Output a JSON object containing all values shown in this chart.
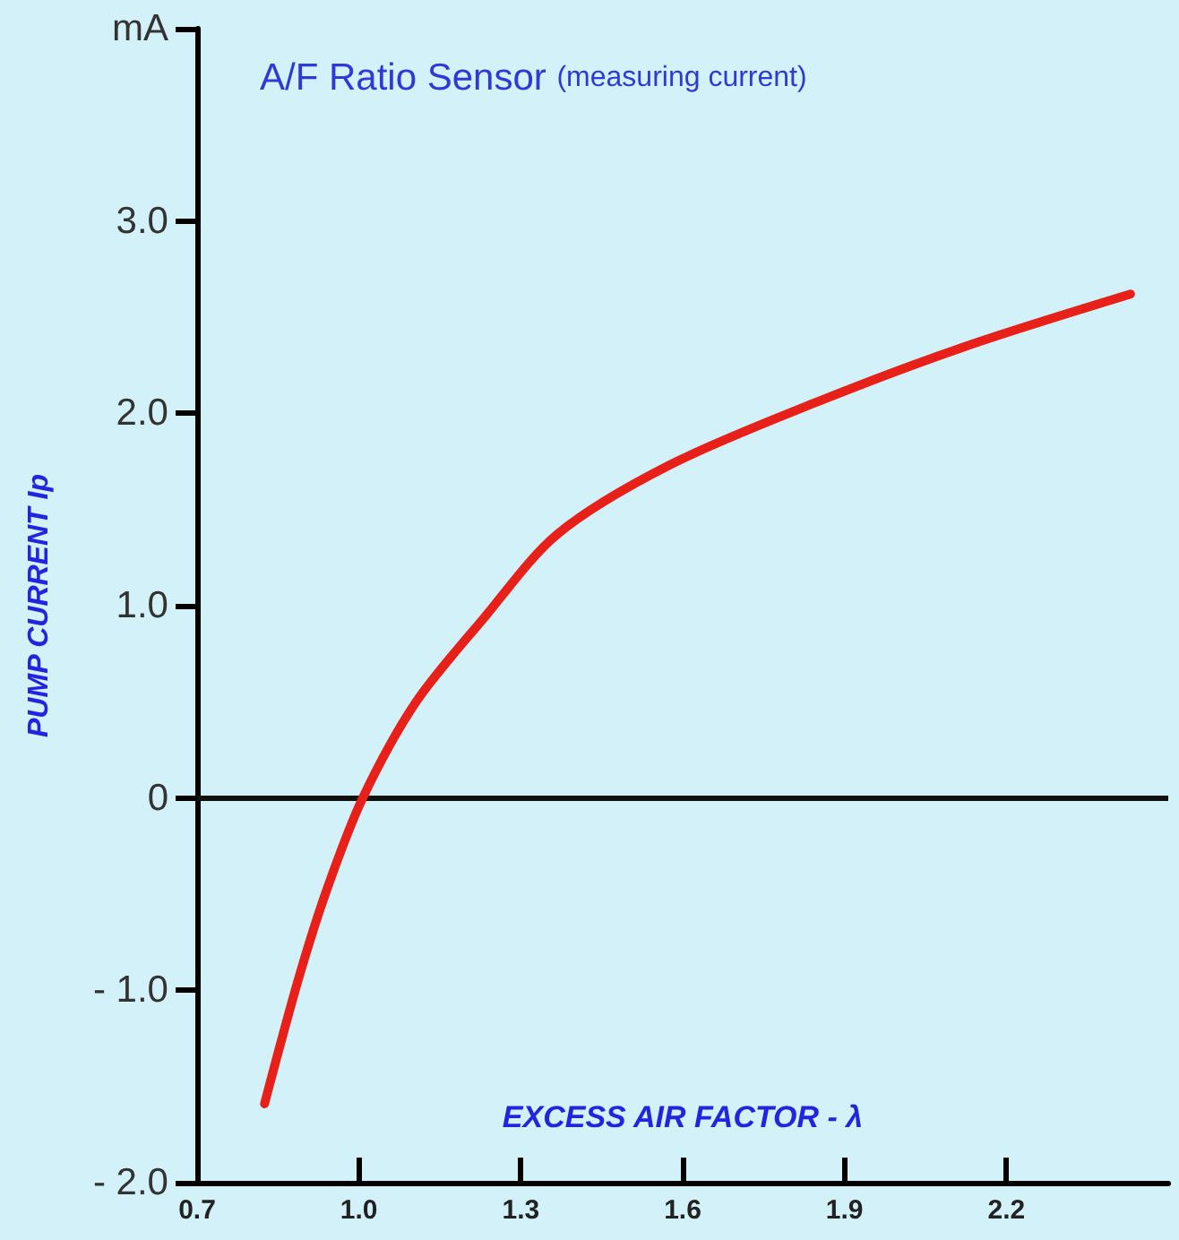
{
  "chart_data": {
    "type": "line",
    "title": "A/F Ratio Sensor",
    "subtitle": "(measuring current)",
    "xlabel": "EXCESS AIR FACTOR - λ",
    "ylabel": "PUMP CURRENT Ip",
    "x": [
      0.825,
      0.888,
      0.94,
      1.007,
      1.106,
      1.23,
      1.367,
      1.575,
      1.85,
      2.126,
      2.43
    ],
    "series": [
      {
        "color": "#e8201a",
        "values": [
          -1.59,
          -0.94,
          -0.48,
          0,
          0.5,
          0.93,
          1.37,
          1.73,
          2.06,
          2.35,
          2.62
        ]
      }
    ],
    "xlim": [
      0.7,
      2.5
    ],
    "xticks": [
      0.7,
      {
        "value": 1,
        "label": "1.0"
      },
      1.3,
      1.6,
      1.9,
      2.2
    ],
    "ylim": [
      -2,
      4
    ],
    "yticks": [
      {
        "value": -2,
        "label": "- 2.0"
      },
      {
        "value": -1,
        "label": "- 1.0"
      },
      0,
      {
        "value": 1,
        "label": "1.0"
      },
      {
        "value": 2,
        "label": "2.0"
      },
      {
        "value": 3,
        "label": "3.0"
      },
      {
        "value": 4,
        "label": "mA"
      }
    ],
    "ref_lines": [
      {
        "axis": "y",
        "value": 0,
        "color": "#111111"
      }
    ],
    "grid": false,
    "marker": "none",
    "line_style": "solid"
  }
}
